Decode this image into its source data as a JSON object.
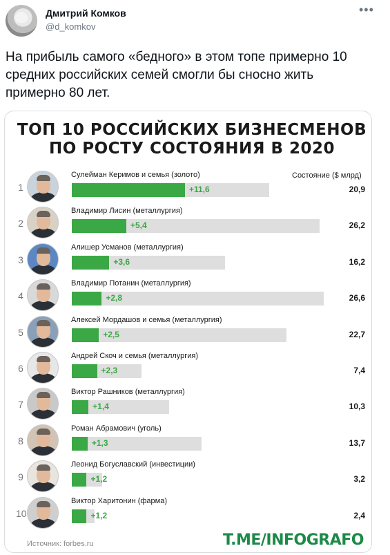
{
  "tweet": {
    "author_name": "Дмитрий Комков",
    "author_handle": "@d_komkov",
    "more_icon": "more-horizontal-icon",
    "text": "На прибыль самого «бедного» в этом топе примерно 10 средних российских семей смогли бы сносно жить примерно 80 лет."
  },
  "infographic": {
    "title_line1": "ТОП 10 РОССИЙСКИХ БИЗНЕСМЕНОВ",
    "title_line2": "ПО РОСТУ СОСТОЯНИЯ В 2020",
    "column_header": "Состояние ($ млрд)",
    "source": "Источник: forbes.ru",
    "brand": "T.ME/INFOGRAFO",
    "colors": {
      "growth": "#3aa844",
      "track": "#dedede",
      "brand": "#1c8a47"
    }
  },
  "chart_data": {
    "type": "bar",
    "title": "ТОП 10 РОССИЙСКИХ БИЗНЕСМЕНОВ ПО РОСТУ СОСТОЯНИЯ В 2020",
    "ylabel": "Состояние ($ млрд)",
    "rows": [
      {
        "rank": "1",
        "name": "Сулейман Керимов и семья (золото)",
        "growth": 11.6,
        "growth_label": "+11,6",
        "worth": 20.9,
        "worth_label": "20,9"
      },
      {
        "rank": "2",
        "name": "Владимир Лисин (металлургия)",
        "growth": 5.4,
        "growth_label": "+5,4",
        "worth": 26.2,
        "worth_label": "26,2"
      },
      {
        "rank": "3",
        "name": "Алишер Усманов (металлургия)",
        "growth": 3.6,
        "growth_label": "+3,6",
        "worth": 16.2,
        "worth_label": "16,2"
      },
      {
        "rank": "4",
        "name": "Владимир Потанин (металлургия)",
        "growth": 2.8,
        "growth_label": "+2,8",
        "worth": 26.6,
        "worth_label": "26,6"
      },
      {
        "rank": "5",
        "name": "Алексей Мордашов и семья (металлургия)",
        "growth": 2.5,
        "growth_label": "+2,5",
        "worth": 22.7,
        "worth_label": "22,7"
      },
      {
        "rank": "6",
        "name": "Андрей Скоч и семья (металлургия)",
        "growth": 2.3,
        "growth_label": "+2,3",
        "worth": 7.4,
        "worth_label": "7,4"
      },
      {
        "rank": "7",
        "name": "Виктор Рашников (металлургия)",
        "growth": 1.4,
        "growth_label": "+1,4",
        "worth": 10.3,
        "worth_label": "10,3"
      },
      {
        "rank": "8",
        "name": "Роман Абрамович (уголь)",
        "growth": 1.3,
        "growth_label": "+1,3",
        "worth": 13.7,
        "worth_label": "13,7"
      },
      {
        "rank": "9",
        "name": "Леонид Богуславский (инвестиции)",
        "growth": 1.2,
        "growth_label": "+1,2",
        "worth": 3.2,
        "worth_label": "3,2"
      },
      {
        "rank": "10",
        "name": "Виктор Харитонин (фарма)",
        "growth": 1.2,
        "growth_label": "+1,2",
        "worth": 2.4,
        "worth_label": "2,4"
      }
    ]
  }
}
